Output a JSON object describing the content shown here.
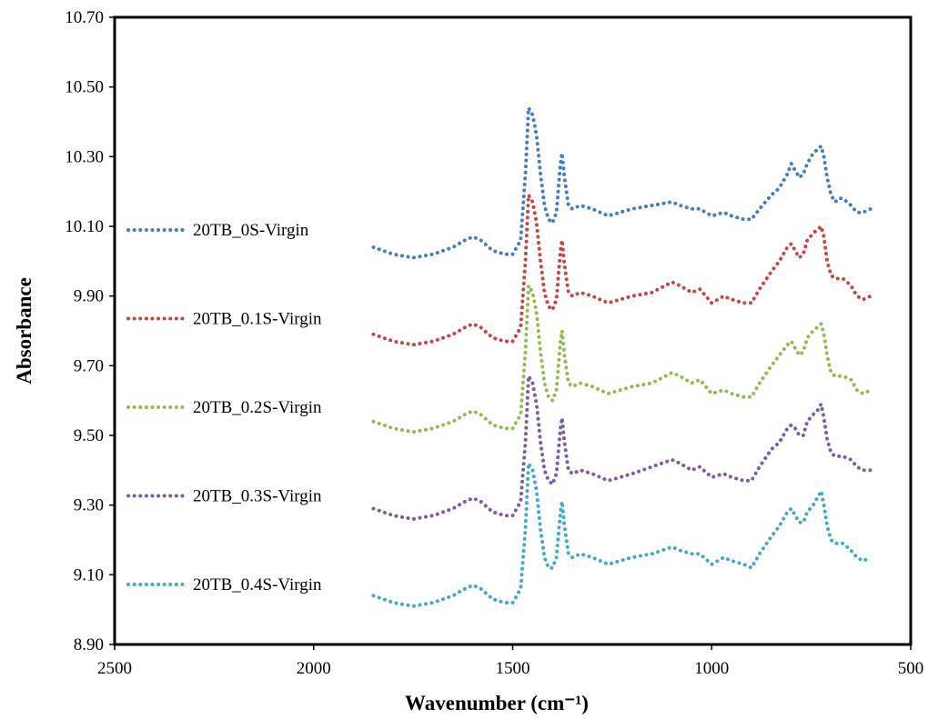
{
  "chart_data": {
    "type": "line",
    "title": "",
    "xlabel": "Wavenumber (cm⁻¹)",
    "ylabel": "Absorbance",
    "xlim": [
      2500,
      500
    ],
    "x_reversed": true,
    "ylim": [
      8.9,
      10.7
    ],
    "x_ticks": [
      "2500",
      "2000",
      "1500",
      "1000",
      "500"
    ],
    "y_ticks": [
      "8.90",
      "9.10",
      "9.30",
      "9.50",
      "9.70",
      "9.90",
      "10.10",
      "10.30",
      "10.50",
      "10.70"
    ],
    "grid": false,
    "legend_position": "left",
    "line_style": "dotted",
    "series": [
      {
        "name": "20TB_0S-Virgin",
        "color": "#4a7ebb",
        "x": [
          1850,
          1800,
          1750,
          1700,
          1650,
          1620,
          1600,
          1580,
          1550,
          1520,
          1500,
          1480,
          1468,
          1460,
          1450,
          1440,
          1430,
          1420,
          1410,
          1400,
          1390,
          1380,
          1376,
          1370,
          1360,
          1350,
          1330,
          1300,
          1260,
          1200,
          1150,
          1100,
          1080,
          1050,
          1030,
          1000,
          970,
          950,
          920,
          900,
          880,
          850,
          830,
          810,
          800,
          790,
          780,
          770,
          760,
          745,
          735,
          725,
          718,
          710,
          700,
          690,
          680,
          670,
          650,
          635,
          620,
          600
        ],
        "y": [
          10.04,
          10.02,
          10.01,
          10.02,
          10.04,
          10.06,
          10.07,
          10.06,
          10.03,
          10.02,
          10.02,
          10.06,
          10.25,
          10.44,
          10.42,
          10.36,
          10.25,
          10.16,
          10.12,
          10.11,
          10.14,
          10.28,
          10.31,
          10.24,
          10.16,
          10.15,
          10.16,
          10.15,
          10.13,
          10.15,
          10.16,
          10.17,
          10.16,
          10.15,
          10.15,
          10.13,
          10.14,
          10.13,
          10.12,
          10.12,
          10.15,
          10.19,
          10.21,
          10.25,
          10.28,
          10.26,
          10.24,
          10.25,
          10.28,
          10.31,
          10.32,
          10.33,
          10.3,
          10.24,
          10.19,
          10.17,
          10.18,
          10.18,
          10.16,
          10.14,
          10.14,
          10.15
        ]
      },
      {
        "name": "20TB_0.1S-Virgin",
        "color": "#be4b48",
        "x": [
          1850,
          1800,
          1750,
          1700,
          1650,
          1620,
          1600,
          1580,
          1550,
          1520,
          1500,
          1480,
          1468,
          1460,
          1450,
          1440,
          1430,
          1420,
          1410,
          1400,
          1390,
          1380,
          1376,
          1370,
          1360,
          1350,
          1330,
          1300,
          1260,
          1200,
          1150,
          1100,
          1080,
          1050,
          1030,
          1000,
          970,
          950,
          920,
          900,
          880,
          850,
          830,
          810,
          800,
          790,
          780,
          770,
          760,
          745,
          735,
          725,
          718,
          710,
          700,
          690,
          680,
          670,
          650,
          635,
          620,
          600
        ],
        "y": [
          9.79,
          9.77,
          9.76,
          9.77,
          9.79,
          9.81,
          9.82,
          9.81,
          9.78,
          9.77,
          9.77,
          9.81,
          10.0,
          10.19,
          10.17,
          10.11,
          10.0,
          9.91,
          9.87,
          9.86,
          9.89,
          10.03,
          10.06,
          9.99,
          9.91,
          9.9,
          9.91,
          9.9,
          9.88,
          9.9,
          9.91,
          9.94,
          9.93,
          9.91,
          9.92,
          9.88,
          9.9,
          9.89,
          9.88,
          9.88,
          9.92,
          9.97,
          10.0,
          10.04,
          10.05,
          10.03,
          10.01,
          10.02,
          10.06,
          10.08,
          10.09,
          10.1,
          10.07,
          10.0,
          9.96,
          9.95,
          9.95,
          9.95,
          9.93,
          9.9,
          9.89,
          9.9
        ]
      },
      {
        "name": "20TB_0.2S-Virgin",
        "color": "#98b954",
        "x": [
          1850,
          1800,
          1750,
          1700,
          1650,
          1620,
          1600,
          1580,
          1550,
          1520,
          1500,
          1480,
          1468,
          1460,
          1450,
          1440,
          1430,
          1420,
          1410,
          1400,
          1390,
          1380,
          1376,
          1370,
          1360,
          1350,
          1330,
          1300,
          1260,
          1200,
          1150,
          1100,
          1080,
          1050,
          1030,
          1000,
          970,
          950,
          920,
          900,
          880,
          850,
          830,
          810,
          800,
          790,
          780,
          770,
          760,
          745,
          735,
          725,
          718,
          710,
          700,
          690,
          680,
          670,
          650,
          635,
          620,
          600
        ],
        "y": [
          9.54,
          9.52,
          9.51,
          9.52,
          9.54,
          9.56,
          9.57,
          9.56,
          9.53,
          9.52,
          9.52,
          9.56,
          9.74,
          9.93,
          9.91,
          9.85,
          9.74,
          9.65,
          9.61,
          9.6,
          9.63,
          9.77,
          9.8,
          9.73,
          9.65,
          9.64,
          9.65,
          9.64,
          9.62,
          9.64,
          9.65,
          9.68,
          9.67,
          9.65,
          9.66,
          9.62,
          9.63,
          9.62,
          9.61,
          9.61,
          9.65,
          9.7,
          9.73,
          9.76,
          9.77,
          9.75,
          9.73,
          9.74,
          9.78,
          9.8,
          9.81,
          9.82,
          9.79,
          9.73,
          9.68,
          9.67,
          9.67,
          9.67,
          9.66,
          9.63,
          9.62,
          9.63
        ]
      },
      {
        "name": "20TB_0.3S-Virgin",
        "color": "#7d5fa0",
        "x": [
          1850,
          1800,
          1750,
          1700,
          1650,
          1620,
          1600,
          1580,
          1550,
          1520,
          1500,
          1480,
          1468,
          1460,
          1450,
          1440,
          1430,
          1420,
          1410,
          1400,
          1390,
          1380,
          1376,
          1370,
          1360,
          1350,
          1330,
          1300,
          1260,
          1200,
          1150,
          1100,
          1080,
          1050,
          1030,
          1000,
          970,
          950,
          920,
          900,
          880,
          850,
          830,
          810,
          800,
          790,
          780,
          770,
          760,
          745,
          735,
          725,
          718,
          710,
          700,
          690,
          680,
          670,
          650,
          635,
          620,
          600
        ],
        "y": [
          9.29,
          9.27,
          9.26,
          9.27,
          9.29,
          9.31,
          9.32,
          9.31,
          9.28,
          9.27,
          9.27,
          9.31,
          9.48,
          9.67,
          9.65,
          9.59,
          9.48,
          9.4,
          9.37,
          9.36,
          9.39,
          9.52,
          9.55,
          9.48,
          9.4,
          9.39,
          9.4,
          9.39,
          9.37,
          9.39,
          9.41,
          9.43,
          9.42,
          9.4,
          9.41,
          9.38,
          9.39,
          9.38,
          9.37,
          9.37,
          9.41,
          9.46,
          9.48,
          9.52,
          9.53,
          9.52,
          9.5,
          9.5,
          9.54,
          9.56,
          9.57,
          9.59,
          9.55,
          9.49,
          9.45,
          9.44,
          9.44,
          9.44,
          9.43,
          9.41,
          9.4,
          9.4
        ]
      },
      {
        "name": "20TB_0.4S-Virgin",
        "color": "#46aac5",
        "x": [
          1850,
          1800,
          1750,
          1700,
          1650,
          1620,
          1600,
          1580,
          1550,
          1520,
          1500,
          1480,
          1468,
          1460,
          1450,
          1440,
          1430,
          1420,
          1410,
          1400,
          1390,
          1380,
          1376,
          1370,
          1360,
          1350,
          1330,
          1300,
          1260,
          1200,
          1150,
          1100,
          1080,
          1050,
          1030,
          1000,
          970,
          950,
          920,
          900,
          880,
          850,
          830,
          810,
          800,
          790,
          780,
          770,
          760,
          745,
          735,
          725,
          718,
          710,
          700,
          690,
          680,
          670,
          650,
          635,
          620,
          600
        ],
        "y": [
          9.04,
          9.02,
          9.01,
          9.02,
          9.04,
          9.06,
          9.07,
          9.06,
          9.03,
          9.02,
          9.02,
          9.06,
          9.23,
          9.42,
          9.4,
          9.34,
          9.23,
          9.15,
          9.12,
          9.12,
          9.15,
          9.28,
          9.31,
          9.24,
          9.16,
          9.15,
          9.16,
          9.15,
          9.13,
          9.15,
          9.16,
          9.18,
          9.17,
          9.16,
          9.16,
          9.13,
          9.15,
          9.14,
          9.13,
          9.12,
          9.16,
          9.21,
          9.24,
          9.28,
          9.29,
          9.27,
          9.25,
          9.25,
          9.28,
          9.3,
          9.32,
          9.34,
          9.3,
          9.24,
          9.2,
          9.19,
          9.19,
          9.19,
          9.17,
          9.15,
          9.14,
          9.15
        ]
      }
    ]
  }
}
